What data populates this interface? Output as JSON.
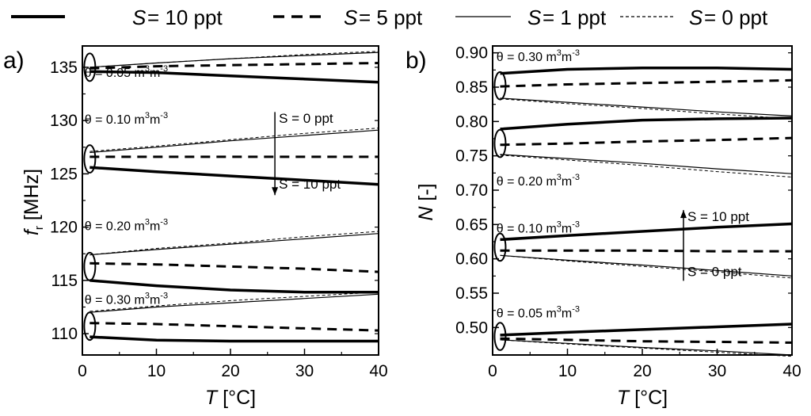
{
  "chart_data": [
    {
      "type": "line",
      "panel_label": "a)",
      "xlabel_symbol": "T",
      "xlabel_unit": " [°C]",
      "ylabel_symbol": "f",
      "ylabel_sub": "r",
      "ylabel_unit": " [MHz]",
      "xlim": [
        0,
        40
      ],
      "ylim": [
        108,
        137
      ],
      "xticks": [
        0,
        10,
        20,
        30,
        40
      ],
      "yticks": [
        110,
        115,
        120,
        125,
        130,
        135
      ],
      "grid": false,
      "series": [
        {
          "theta": "0.05",
          "salinity": "10 ppt",
          "x": [
            1,
            10,
            20,
            30,
            40
          ],
          "y": [
            134.6,
            134.5,
            134.2,
            133.9,
            133.6
          ]
        },
        {
          "theta": "0.05",
          "salinity": "5 ppt",
          "x": [
            1,
            10,
            20,
            30,
            40
          ],
          "y": [
            134.9,
            135.1,
            135.2,
            135.3,
            135.4
          ]
        },
        {
          "theta": "0.05",
          "salinity": "1 ppt",
          "x": [
            1,
            10,
            20,
            30,
            40
          ],
          "y": [
            135.0,
            135.4,
            135.8,
            136.1,
            136.4
          ]
        },
        {
          "theta": "0.05",
          "salinity": "0 ppt",
          "x": [
            1,
            10,
            20,
            30,
            40
          ],
          "y": [
            135.0,
            135.4,
            135.8,
            136.2,
            136.5
          ]
        },
        {
          "theta": "0.10",
          "salinity": "10 ppt",
          "x": [
            1,
            10,
            20,
            30,
            40
          ],
          "y": [
            125.6,
            125.2,
            124.8,
            124.4,
            124.0
          ]
        },
        {
          "theta": "0.10",
          "salinity": "5 ppt",
          "x": [
            1,
            10,
            20,
            30,
            40
          ],
          "y": [
            126.6,
            126.6,
            126.6,
            126.6,
            126.6
          ]
        },
        {
          "theta": "0.10",
          "salinity": "1 ppt",
          "x": [
            1,
            10,
            20,
            30,
            40
          ],
          "y": [
            127.0,
            127.5,
            128.1,
            128.6,
            129.1
          ]
        },
        {
          "theta": "0.10",
          "salinity": "0 ppt",
          "x": [
            1,
            10,
            20,
            30,
            40
          ],
          "y": [
            127.1,
            127.6,
            128.2,
            128.8,
            129.3
          ]
        },
        {
          "theta": "0.20",
          "salinity": "10 ppt",
          "x": [
            1,
            10,
            20,
            30,
            40
          ],
          "y": [
            115.0,
            114.5,
            114.1,
            113.9,
            113.9
          ]
        },
        {
          "theta": "0.20",
          "salinity": "5 ppt",
          "x": [
            1,
            10,
            20,
            30,
            40
          ],
          "y": [
            116.6,
            116.5,
            116.3,
            116.1,
            115.8
          ]
        },
        {
          "theta": "0.20",
          "salinity": "1 ppt",
          "x": [
            1,
            10,
            20,
            30,
            40
          ],
          "y": [
            117.4,
            117.9,
            118.4,
            118.9,
            119.4
          ]
        },
        {
          "theta": "0.20",
          "salinity": "0 ppt",
          "x": [
            1,
            10,
            20,
            30,
            40
          ],
          "y": [
            117.4,
            118.0,
            118.5,
            119.1,
            119.6
          ]
        },
        {
          "theta": "0.30",
          "salinity": "10 ppt",
          "x": [
            1,
            10,
            20,
            30,
            40
          ],
          "y": [
            109.7,
            109.4,
            109.3,
            109.3,
            109.3
          ]
        },
        {
          "theta": "0.30",
          "salinity": "5 ppt",
          "x": [
            1,
            10,
            20,
            30,
            40
          ],
          "y": [
            111.0,
            110.9,
            110.7,
            110.5,
            110.3
          ]
        },
        {
          "theta": "0.30",
          "salinity": "1 ppt",
          "x": [
            1,
            10,
            20,
            30,
            40
          ],
          "y": [
            112.0,
            112.5,
            112.9,
            113.3,
            113.7
          ]
        },
        {
          "theta": "0.30",
          "salinity": "0 ppt",
          "x": [
            1,
            10,
            20,
            30,
            40
          ],
          "y": [
            112.1,
            112.6,
            113.1,
            113.5,
            113.9
          ]
        }
      ],
      "annotations": [
        {
          "text": "θ = 0.05 m",
          "x": 0.3,
          "y": 134.1
        },
        {
          "text": "θ = 0.10 m",
          "x": 0.3,
          "y": 129.7
        },
        {
          "text": "θ = 0.20 m",
          "x": 0.3,
          "y": 119.7
        },
        {
          "text": "θ = 0.30 m",
          "x": 0.3,
          "y": 112.8
        }
      ],
      "arrow": {
        "x": 26,
        "y_from": 130.8,
        "y_to": 123.0,
        "top_label": "S = 0 ppt",
        "bottom_label": "S = 10 ppt",
        "top_label_y": 129.8,
        "bottom_label_y": 123.6
      },
      "ellipses": [
        {
          "x": 1,
          "y": 135.0,
          "ry": 1.3
        },
        {
          "x": 1,
          "y": 126.4,
          "ry": 1.3
        },
        {
          "x": 1,
          "y": 116.3,
          "ry": 1.3
        },
        {
          "x": 1,
          "y": 110.7,
          "ry": 1.3
        }
      ]
    },
    {
      "type": "line",
      "panel_label": "b)",
      "xlabel_symbol": "T",
      "xlabel_unit": " [°C]",
      "ylabel_symbol": "N",
      "ylabel_sub": "",
      "ylabel_unit": " [-]",
      "xlim": [
        0,
        40
      ],
      "ylim": [
        0.46,
        0.91
      ],
      "xticks": [
        0,
        10,
        20,
        30,
        40
      ],
      "yticks": [
        0.5,
        0.55,
        0.6,
        0.65,
        0.7,
        0.75,
        0.8,
        0.85,
        0.9
      ],
      "ytick_labels": [
        "0.50",
        "0.55",
        "0.60",
        "0.65",
        "0.70",
        "0.75",
        "0.80",
        "0.85",
        "0.90"
      ],
      "grid": false,
      "series": [
        {
          "theta": "0.30",
          "salinity": "10 ppt",
          "x": [
            1,
            10,
            20,
            30,
            40
          ],
          "y": [
            0.87,
            0.876,
            0.878,
            0.878,
            0.876
          ]
        },
        {
          "theta": "0.30",
          "salinity": "5 ppt",
          "x": [
            1,
            10,
            20,
            30,
            40
          ],
          "y": [
            0.851,
            0.854,
            0.856,
            0.858,
            0.86
          ]
        },
        {
          "theta": "0.30",
          "salinity": "1 ppt",
          "x": [
            1,
            10,
            20,
            30,
            40
          ],
          "y": [
            0.834,
            0.828,
            0.821,
            0.814,
            0.808
          ]
        },
        {
          "theta": "0.30",
          "salinity": "0 ppt",
          "x": [
            1,
            10,
            20,
            30,
            40
          ],
          "y": [
            0.833,
            0.826,
            0.819,
            0.811,
            0.804
          ]
        },
        {
          "theta": "0.20",
          "salinity": "10 ppt",
          "x": [
            1,
            10,
            20,
            30,
            40
          ],
          "y": [
            0.789,
            0.796,
            0.802,
            0.804,
            0.805
          ]
        },
        {
          "theta": "0.20",
          "salinity": "5 ppt",
          "x": [
            1,
            10,
            20,
            30,
            40
          ],
          "y": [
            0.766,
            0.768,
            0.771,
            0.773,
            0.776
          ]
        },
        {
          "theta": "0.20",
          "salinity": "1 ppt",
          "x": [
            1,
            10,
            20,
            30,
            40
          ],
          "y": [
            0.752,
            0.746,
            0.739,
            0.731,
            0.724
          ]
        },
        {
          "theta": "0.20",
          "salinity": "0 ppt",
          "x": [
            1,
            10,
            20,
            30,
            40
          ],
          "y": [
            0.751,
            0.744,
            0.736,
            0.727,
            0.719
          ]
        },
        {
          "theta": "0.10",
          "salinity": "10 ppt",
          "x": [
            1,
            10,
            20,
            30,
            40
          ],
          "y": [
            0.628,
            0.634,
            0.64,
            0.646,
            0.651
          ]
        },
        {
          "theta": "0.10",
          "salinity": "5 ppt",
          "x": [
            1,
            10,
            20,
            30,
            40
          ],
          "y": [
            0.612,
            0.612,
            0.612,
            0.611,
            0.611
          ]
        },
        {
          "theta": "0.10",
          "salinity": "1 ppt",
          "x": [
            1,
            10,
            20,
            30,
            40
          ],
          "y": [
            0.605,
            0.598,
            0.591,
            0.583,
            0.575
          ]
        },
        {
          "theta": "0.10",
          "salinity": "0 ppt",
          "x": [
            1,
            10,
            20,
            30,
            40
          ],
          "y": [
            0.605,
            0.597,
            0.589,
            0.581,
            0.572
          ]
        },
        {
          "theta": "0.05",
          "salinity": "10 ppt",
          "x": [
            1,
            10,
            20,
            30,
            40
          ],
          "y": [
            0.489,
            0.493,
            0.497,
            0.501,
            0.505
          ]
        },
        {
          "theta": "0.05",
          "salinity": "5 ppt",
          "x": [
            1,
            10,
            20,
            30,
            40
          ],
          "y": [
            0.484,
            0.482,
            0.48,
            0.479,
            0.478
          ]
        },
        {
          "theta": "0.05",
          "salinity": "1 ppt",
          "x": [
            1,
            10,
            20,
            30,
            40
          ],
          "y": [
            0.482,
            0.477,
            0.471,
            0.466,
            0.46
          ]
        },
        {
          "theta": "0.05",
          "salinity": "0 ppt",
          "x": [
            1,
            10,
            20,
            30,
            40
          ],
          "y": [
            0.482,
            0.476,
            0.47,
            0.464,
            0.458
          ]
        }
      ],
      "annotations": [
        {
          "text": "θ = 0.30 m",
          "x": 0.5,
          "y": 0.888
        },
        {
          "text": "θ = 0.20 m",
          "x": 0.5,
          "y": 0.707
        },
        {
          "text": "θ = 0.10 m",
          "x": 0.5,
          "y": 0.638
        },
        {
          "text": "θ = 0.05 m",
          "x": 0.5,
          "y": 0.515
        }
      ],
      "arrow": {
        "x": 25.5,
        "y_from": 0.568,
        "y_to": 0.671,
        "top_label": "S = 10 ppt",
        "bottom_label": "S = 0 ppt",
        "top_label_y": 0.655,
        "bottom_label_y": 0.575
      },
      "ellipses": [
        {
          "x": 1,
          "y": 0.852,
          "ry": 0.02
        },
        {
          "x": 1,
          "y": 0.768,
          "ry": 0.02
        },
        {
          "x": 1,
          "y": 0.617,
          "ry": 0.02
        },
        {
          "x": 1,
          "y": 0.487,
          "ry": 0.02
        }
      ]
    }
  ],
  "annotation_units": {
    "sup1": "3",
    "mid": "m",
    "sup2": "-3"
  },
  "legend": {
    "placement": "top",
    "symbol": "S",
    "entries": [
      {
        "text": " = 10 ppt",
        "style": "thick-solid"
      },
      {
        "text": " = 5 ppt",
        "style": "thick-dashed"
      },
      {
        "text": " = 1 ppt",
        "style": "thin-solid"
      },
      {
        "text": " = 0 ppt",
        "style": "thin-dashed"
      }
    ]
  }
}
